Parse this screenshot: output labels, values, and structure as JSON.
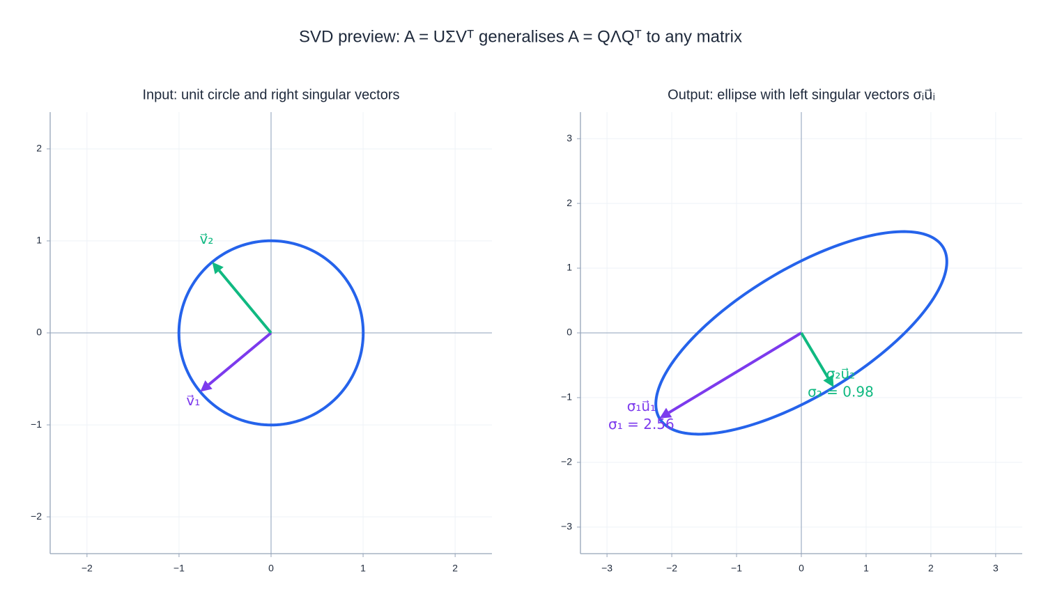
{
  "title": "SVD preview:  A = UΣVᵀ  generalises A = QΛQᵀ to any matrix",
  "chart_data": [
    {
      "type": "vector",
      "title": "Input:  unit circle and right singular vectors",
      "xlim": [
        -2.4,
        2.4
      ],
      "ylim": [
        -2.4,
        2.4
      ],
      "xticks": [
        {
          "value": -2,
          "label": "−2"
        },
        {
          "value": -1,
          "label": "−1"
        },
        0,
        1,
        2
      ],
      "yticks": [
        {
          "value": -2,
          "label": "−2"
        },
        {
          "value": -1,
          "label": "−1"
        },
        0,
        1,
        2
      ],
      "grid": true,
      "shape_color": "#2563eb",
      "vectors": [
        {
          "name": "v⃗₁",
          "color": "#7c3aed",
          "x": -0.77,
          "y": -0.64
        },
        {
          "name": "v⃗₂",
          "color": "#10b981",
          "x": -0.64,
          "y": 0.77
        }
      ]
    },
    {
      "type": "vector",
      "title": "Output:  ellipse with left singular vectors σᵢu⃗ᵢ",
      "xlim": [
        -3.41,
        3.41
      ],
      "ylim": [
        -3.41,
        3.41
      ],
      "xticks": [
        {
          "value": -3,
          "label": "−3"
        },
        {
          "value": -2,
          "label": "−2"
        },
        {
          "value": -1,
          "label": "−1"
        },
        0,
        1,
        2,
        3
      ],
      "yticks": [
        {
          "value": -3,
          "label": "−3"
        },
        {
          "value": -2,
          "label": "−2"
        },
        {
          "value": -1,
          "label": "−1"
        },
        0,
        1,
        2,
        3
      ],
      "grid": true,
      "shape_color": "#2563eb",
      "vectors": [
        {
          "name": "σ₁u⃗₁",
          "note": "σ₁ = 2.56",
          "color": "#7c3aed",
          "x": -2.19,
          "y": -1.32
        },
        {
          "name": "σ₂u⃗₂",
          "note": "σ₂ = 0.98",
          "color": "#10b981",
          "x": 0.5,
          "y": -0.84
        }
      ]
    }
  ]
}
